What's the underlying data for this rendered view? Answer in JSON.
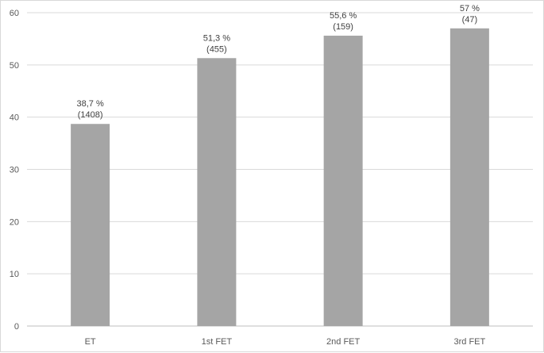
{
  "chart_data": {
    "type": "bar",
    "categories": [
      "ET",
      "1st FET",
      "2nd FET",
      "3rd FET"
    ],
    "values": [
      38.7,
      51.3,
      55.6,
      57
    ],
    "value_labels": [
      "38,7 %",
      "51,3 %",
      "55,6 %",
      "57 %"
    ],
    "count_labels": [
      "(1408)",
      "(455)",
      "(159)",
      "(47)"
    ],
    "ylim": [
      0,
      60
    ],
    "yticks": [
      0,
      10,
      20,
      30,
      40,
      50,
      60
    ],
    "title": "",
    "xlabel": "",
    "ylabel": "",
    "grid": true,
    "legend": "none",
    "colors": {
      "bar": "#a5a5a5",
      "grid": "#d9d9d9",
      "axis": "#bfbfbf",
      "tick_text": "#595959",
      "label_text": "#404040"
    }
  }
}
